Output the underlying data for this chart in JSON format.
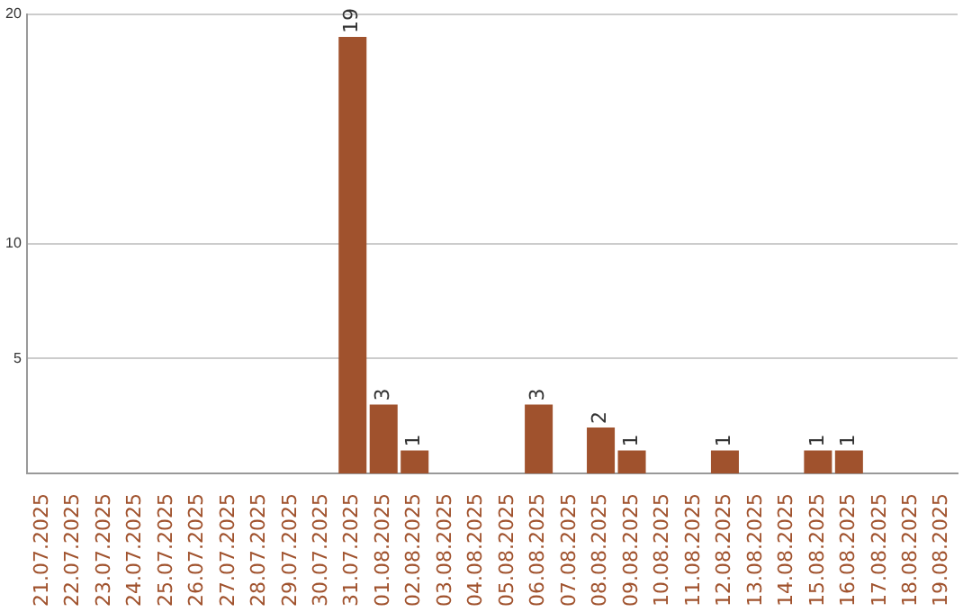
{
  "chart_data": {
    "type": "bar",
    "categories": [
      "21.07.2025",
      "22.07.2025",
      "23.07.2025",
      "24.07.2025",
      "25.07.2025",
      "26.07.2025",
      "27.07.2025",
      "28.07.2025",
      "29.07.2025",
      "30.07.2025",
      "31.07.2025",
      "01.08.2025",
      "02.08.2025",
      "03.08.2025",
      "04.08.2025",
      "05.08.2025",
      "06.08.2025",
      "07.08.2025",
      "08.08.2025",
      "09.08.2025",
      "10.08.2025",
      "11.08.2025",
      "12.08.2025",
      "13.08.2025",
      "14.08.2025",
      "15.08.2025",
      "16.08.2025",
      "17.08.2025",
      "18.08.2025",
      "19.08.2025"
    ],
    "values": [
      0,
      0,
      0,
      0,
      0,
      0,
      0,
      0,
      0,
      0,
      19,
      3,
      1,
      0,
      0,
      0,
      3,
      0,
      2,
      1,
      0,
      0,
      1,
      0,
      0,
      1,
      1,
      0,
      0,
      0
    ],
    "value_labels": [
      null,
      null,
      null,
      null,
      null,
      null,
      null,
      null,
      null,
      null,
      "19",
      "3",
      "1",
      null,
      null,
      null,
      "3",
      null,
      "2",
      "1",
      null,
      null,
      "1",
      null,
      null,
      "1",
      "1",
      null,
      null,
      null
    ],
    "color": "#a0522d",
    "ylim": [
      0,
      20
    ],
    "yticks": [
      5,
      10,
      20
    ],
    "grid": "y",
    "legend": false
  }
}
